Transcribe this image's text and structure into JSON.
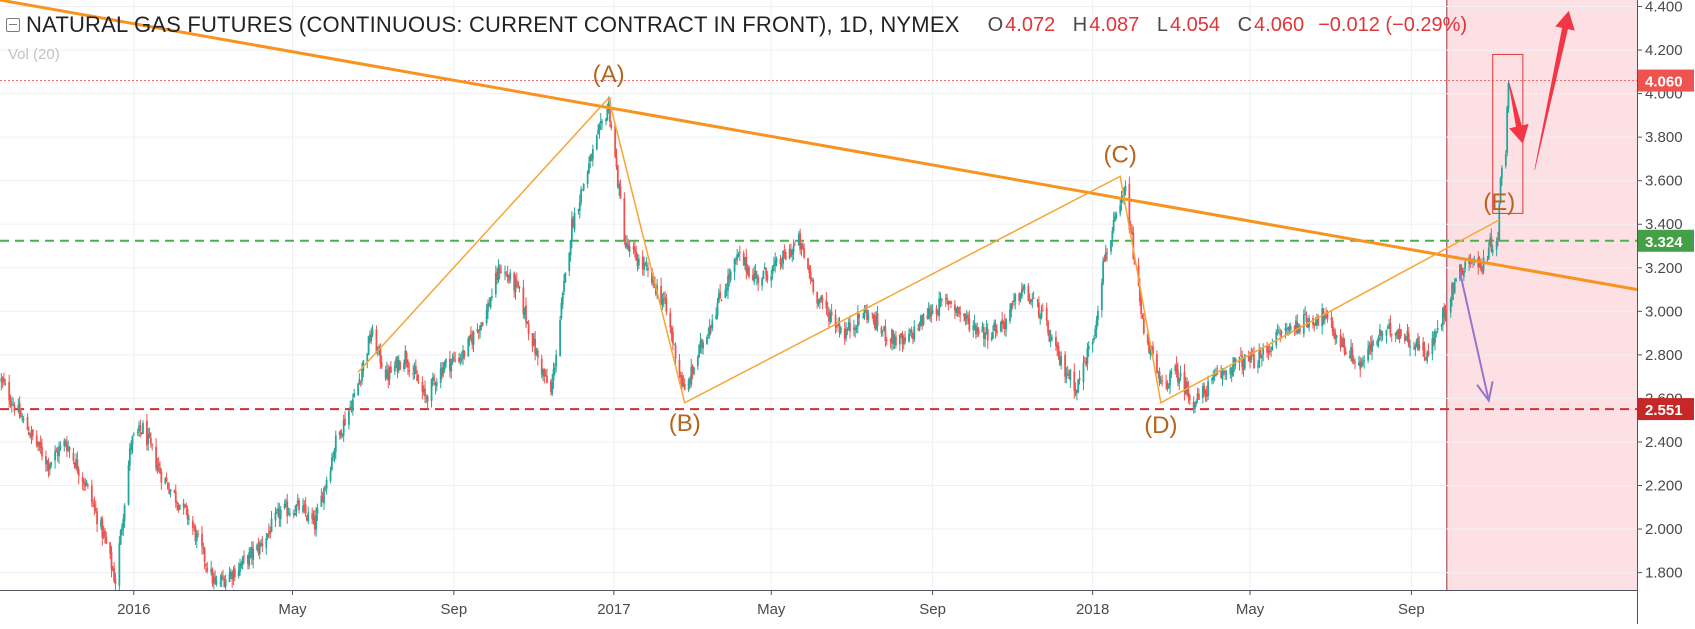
{
  "header": {
    "title": "NATURAL GAS FUTURES (CONTINUOUS: CURRENT CONTRACT IN FRONT), 1D, NYMEX",
    "ohlc": [
      {
        "key": "O",
        "value": "4.072"
      },
      {
        "key": "H",
        "value": "4.087"
      },
      {
        "key": "L",
        "value": "4.054"
      },
      {
        "key": "C",
        "value": "4.060"
      }
    ],
    "change": "−0.012 (−0.29%)",
    "volume_label": "Vol (20)"
  },
  "colors": {
    "up": "#26a69a",
    "down": "#ef5350",
    "trendline": "#f7931e",
    "wave": "#f7a535",
    "support": "#d32f2f",
    "resistance": "#4caf50",
    "forecast_zone": "#fde0e4",
    "arrow_red": "#f23645",
    "arrow_purple": "#9575cd"
  },
  "chart_data": {
    "type": "candlestick",
    "x_range": [
      "2015-09-21",
      "2019-02-20"
    ],
    "y_range": [
      1.72,
      4.43
    ],
    "y_ticks": [
      {
        "value": 1.8,
        "label": "1.800"
      },
      {
        "value": 2.0,
        "label": "2.000"
      },
      {
        "value": 2.2,
        "label": "2.200"
      },
      {
        "value": 2.4,
        "label": "2.400"
      },
      {
        "value": 2.6,
        "label": "2.600"
      },
      {
        "value": 2.8,
        "label": "2.800"
      },
      {
        "value": 3.0,
        "label": "3.000"
      },
      {
        "value": 3.2,
        "label": "3.200"
      },
      {
        "value": 3.4,
        "label": "3.400"
      },
      {
        "value": 3.6,
        "label": "3.600"
      },
      {
        "value": 3.8,
        "label": "3.800"
      },
      {
        "value": 4.0,
        "label": "4.000"
      },
      {
        "value": 4.2,
        "label": "4.200"
      },
      {
        "value": 4.4,
        "label": "4.400"
      }
    ],
    "x_ticks": [
      {
        "date": "2016-01-01",
        "label": "2016"
      },
      {
        "date": "2016-05-01",
        "label": "May"
      },
      {
        "date": "2016-09-01",
        "label": "Sep"
      },
      {
        "date": "2017-01-01",
        "label": "2017"
      },
      {
        "date": "2017-05-01",
        "label": "May"
      },
      {
        "date": "2017-09-01",
        "label": "Sep"
      },
      {
        "date": "2018-01-01",
        "label": "2018"
      },
      {
        "date": "2018-05-01",
        "label": "May"
      },
      {
        "date": "2018-09-01",
        "label": "Sep"
      }
    ],
    "price_path": [
      [
        "2015-09-22",
        2.68
      ],
      [
        "2015-10-08",
        2.5
      ],
      [
        "2015-10-28",
        2.3
      ],
      [
        "2015-11-10",
        2.4
      ],
      [
        "2015-11-26",
        2.2
      ],
      [
        "2015-12-10",
        1.95
      ],
      [
        "2015-12-18",
        1.76
      ],
      [
        "2015-12-30",
        2.4
      ],
      [
        "2016-01-08",
        2.46
      ],
      [
        "2016-01-22",
        2.25
      ],
      [
        "2016-02-12",
        2.05
      ],
      [
        "2016-03-03",
        1.74
      ],
      [
        "2016-03-20",
        1.82
      ],
      [
        "2016-04-06",
        1.92
      ],
      [
        "2016-04-22",
        2.08
      ],
      [
        "2016-05-06",
        2.1
      ],
      [
        "2016-05-18",
        2.02
      ],
      [
        "2016-06-03",
        2.4
      ],
      [
        "2016-06-18",
        2.62
      ],
      [
        "2016-06-30",
        2.9
      ],
      [
        "2016-07-12",
        2.7
      ],
      [
        "2016-07-26",
        2.8
      ],
      [
        "2016-08-10",
        2.6
      ],
      [
        "2016-08-24",
        2.75
      ],
      [
        "2016-09-08",
        2.8
      ],
      [
        "2016-09-26",
        3.0
      ],
      [
        "2016-10-06",
        3.2
      ],
      [
        "2016-10-20",
        3.1
      ],
      [
        "2016-11-03",
        2.8
      ],
      [
        "2016-11-14",
        2.62
      ],
      [
        "2016-11-30",
        3.4
      ],
      [
        "2016-12-12",
        3.65
      ],
      [
        "2016-12-28",
        3.95
      ],
      [
        "2017-01-10",
        3.3
      ],
      [
        "2017-01-24",
        3.2
      ],
      [
        "2017-02-08",
        3.05
      ],
      [
        "2017-02-24",
        2.62
      ],
      [
        "2017-03-06",
        2.8
      ],
      [
        "2017-03-22",
        3.05
      ],
      [
        "2017-04-06",
        3.25
      ],
      [
        "2017-04-20",
        3.15
      ],
      [
        "2017-05-04",
        3.2
      ],
      [
        "2017-05-22",
        3.32
      ],
      [
        "2017-06-06",
        3.05
      ],
      [
        "2017-06-26",
        2.9
      ],
      [
        "2017-07-12",
        3.0
      ],
      [
        "2017-07-26",
        2.9
      ],
      [
        "2017-08-10",
        2.85
      ],
      [
        "2017-08-30",
        3.0
      ],
      [
        "2017-09-14",
        3.05
      ],
      [
        "2017-09-28",
        2.95
      ],
      [
        "2017-10-12",
        2.9
      ],
      [
        "2017-10-26",
        2.95
      ],
      [
        "2017-11-08",
        3.1
      ],
      [
        "2017-11-22",
        3.0
      ],
      [
        "2017-12-06",
        2.78
      ],
      [
        "2017-12-20",
        2.65
      ],
      [
        "2018-01-02",
        2.9
      ],
      [
        "2018-01-10",
        3.25
      ],
      [
        "2018-01-18",
        3.4
      ],
      [
        "2018-01-26",
        3.55
      ],
      [
        "2018-02-08",
        2.95
      ],
      [
        "2018-02-22",
        2.65
      ],
      [
        "2018-03-06",
        2.72
      ],
      [
        "2018-03-20",
        2.58
      ],
      [
        "2018-04-03",
        2.68
      ],
      [
        "2018-04-20",
        2.76
      ],
      [
        "2018-05-08",
        2.78
      ],
      [
        "2018-05-24",
        2.9
      ],
      [
        "2018-06-10",
        2.95
      ],
      [
        "2018-06-26",
        2.98
      ],
      [
        "2018-07-10",
        2.85
      ],
      [
        "2018-07-24",
        2.75
      ],
      [
        "2018-08-06",
        2.88
      ],
      [
        "2018-08-20",
        2.92
      ],
      [
        "2018-09-04",
        2.85
      ],
      [
        "2018-09-14",
        2.8
      ],
      [
        "2018-09-26",
        3.0
      ],
      [
        "2018-10-05",
        3.15
      ],
      [
        "2018-10-15",
        3.25
      ],
      [
        "2018-10-24",
        3.2
      ],
      [
        "2018-10-31",
        3.3
      ],
      [
        "2018-11-06",
        3.35
      ],
      [
        "2018-11-08",
        3.6
      ],
      [
        "2018-11-12",
        3.75
      ],
      [
        "2018-11-13",
        3.95
      ],
      [
        "2018-11-14",
        4.06
      ]
    ],
    "horizontal_lines": [
      {
        "name": "support",
        "value": 2.551,
        "label": "2.551",
        "color": "#d32f2f"
      },
      {
        "name": "resistance",
        "value": 3.324,
        "label": "3.324",
        "color": "#4caf50"
      }
    ],
    "last_price": {
      "value": 4.06,
      "label": "4.060"
    },
    "trendline": {
      "start": [
        "2015-09-21",
        4.43
      ],
      "end": [
        "2019-02-20",
        3.1
      ]
    },
    "wave_points": [
      {
        "label": "",
        "date": "2016-06-20",
        "value": 2.72
      },
      {
        "label": "(A)",
        "date": "2016-12-28",
        "value": 3.98
      },
      {
        "label": "(B)",
        "date": "2017-02-24",
        "value": 2.58
      },
      {
        "label": "(C)",
        "date": "2018-01-22",
        "value": 3.62
      },
      {
        "label": "(D)",
        "date": "2018-02-22",
        "value": 2.58
      },
      {
        "label": "(E)",
        "date": "2018-11-07",
        "value": 3.42
      }
    ],
    "forecast_zone_start": "2018-09-28",
    "highlight_box": {
      "start": "2018-11-02",
      "end": "2018-11-25",
      "low": 3.45,
      "high": 4.18
    },
    "arrows": [
      {
        "name": "arrow-up",
        "color": "#f23645",
        "from": [
          "2018-12-04",
          3.65
        ],
        "to": [
          "2018-12-30",
          4.38
        ]
      },
      {
        "name": "arrow-down-short",
        "color": "#f23645",
        "from": [
          "2018-11-14",
          4.06
        ],
        "to": [
          "2018-11-25",
          3.77
        ]
      },
      {
        "name": "arrow-down-purple",
        "color": "#9575cd",
        "from": [
          "2018-10-08",
          3.18
        ],
        "to": [
          "2018-10-30",
          2.59
        ]
      }
    ]
  }
}
